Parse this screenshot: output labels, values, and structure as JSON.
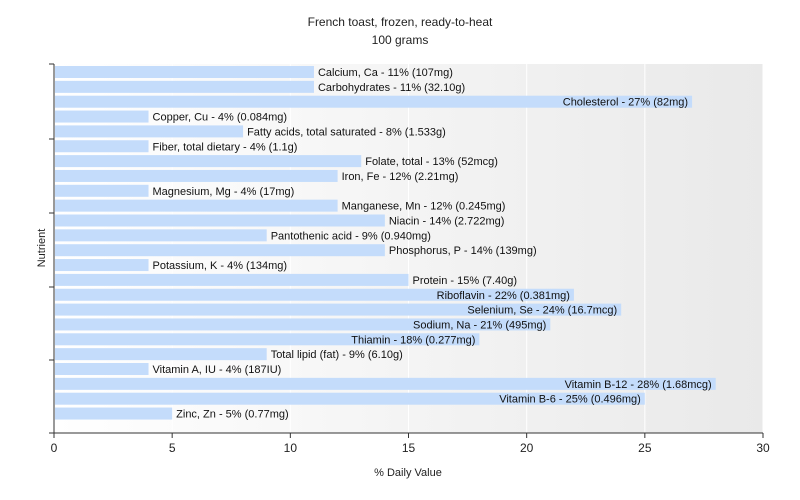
{
  "chart_data": {
    "type": "bar",
    "orientation": "horizontal",
    "title": "French toast, frozen, ready-to-heat",
    "subtitle": "100 grams",
    "xlabel": "% Daily Value",
    "ylabel": "Nutrient",
    "xlim": [
      0,
      30
    ],
    "xticks": [
      0,
      5,
      10,
      15,
      20,
      25,
      30
    ],
    "grid": true,
    "bar_color": "#c4dcfb",
    "categories": [
      "Calcium, Ca",
      "Carbohydrates",
      "Cholesterol",
      "Copper, Cu",
      "Fatty acids, total saturated",
      "Fiber, total dietary",
      "Folate, total",
      "Iron, Fe",
      "Magnesium, Mg",
      "Manganese, Mn",
      "Niacin",
      "Pantothenic acid",
      "Phosphorus, P",
      "Potassium, K",
      "Protein",
      "Riboflavin",
      "Selenium, Se",
      "Sodium, Na",
      "Thiamin",
      "Total lipid (fat)",
      "Vitamin A, IU",
      "Vitamin B-12",
      "Vitamin B-6",
      "Zinc, Zn"
    ],
    "values": [
      11,
      11,
      27,
      4,
      8,
      4,
      13,
      12,
      4,
      12,
      14,
      9,
      14,
      4,
      15,
      22,
      24,
      21,
      18,
      9,
      4,
      28,
      25,
      5
    ],
    "labels": [
      "Calcium, Ca - 11% (107mg)",
      "Carbohydrates - 11% (32.10g)",
      "Cholesterol - 27% (82mg)",
      "Copper, Cu - 4% (0.084mg)",
      "Fatty acids, total saturated - 8% (1.533g)",
      "Fiber, total dietary - 4% (1.1g)",
      "Folate, total - 13% (52mcg)",
      "Iron, Fe - 12% (2.21mg)",
      "Magnesium, Mg - 4% (17mg)",
      "Manganese, Mn - 12% (0.245mg)",
      "Niacin - 14% (2.722mg)",
      "Pantothenic acid - 9% (0.940mg)",
      "Phosphorus, P - 14% (139mg)",
      "Potassium, K - 4% (134mg)",
      "Protein - 15% (7.40g)",
      "Riboflavin - 22% (0.381mg)",
      "Selenium, Se - 24% (16.7mcg)",
      "Sodium, Na - 21% (495mg)",
      "Thiamin - 18% (0.277mg)",
      "Total lipid (fat) - 9% (6.10g)",
      "Vitamin A, IU - 4% (187IU)",
      "Vitamin B-12 - 28% (1.68mcg)",
      "Vitamin B-6 - 25% (0.496mg)",
      "Zinc, Zn - 5% (0.77mg)"
    ]
  }
}
